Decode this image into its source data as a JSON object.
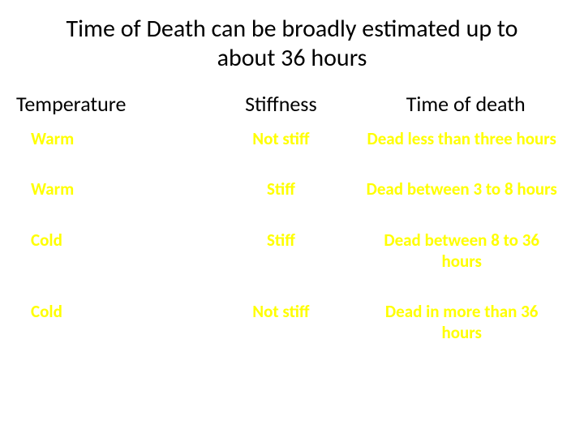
{
  "slide": {
    "title": "Time of Death can be broadly estimated up to about 36 hours",
    "title_fontsize": 30,
    "title_color": "#000000",
    "background_color": "#ffffff",
    "table": {
      "type": "table",
      "header_color": "#000000",
      "header_fontsize": 26,
      "header_fontweight": "400",
      "data_color": "#ffff00",
      "data_fontsize": 21,
      "data_fontweight": "700",
      "columns": [
        "Temperature",
        "Stiffness",
        "Time of death"
      ],
      "rows": [
        {
          "temperature": "Warm",
          "stiffness": "Not stiff",
          "time_of_death": "Dead less than three hours"
        },
        {
          "temperature": "Warm",
          "stiffness": "Stiff",
          "time_of_death": "Dead between 3 to 8 hours"
        },
        {
          "temperature": "Cold",
          "stiffness": "Stiff",
          "time_of_death": "Dead between 8 to 36 hours"
        },
        {
          "temperature": "Cold",
          "stiffness": "Not stiff",
          "time_of_death": "Dead in more than 36 hours"
        }
      ]
    }
  }
}
